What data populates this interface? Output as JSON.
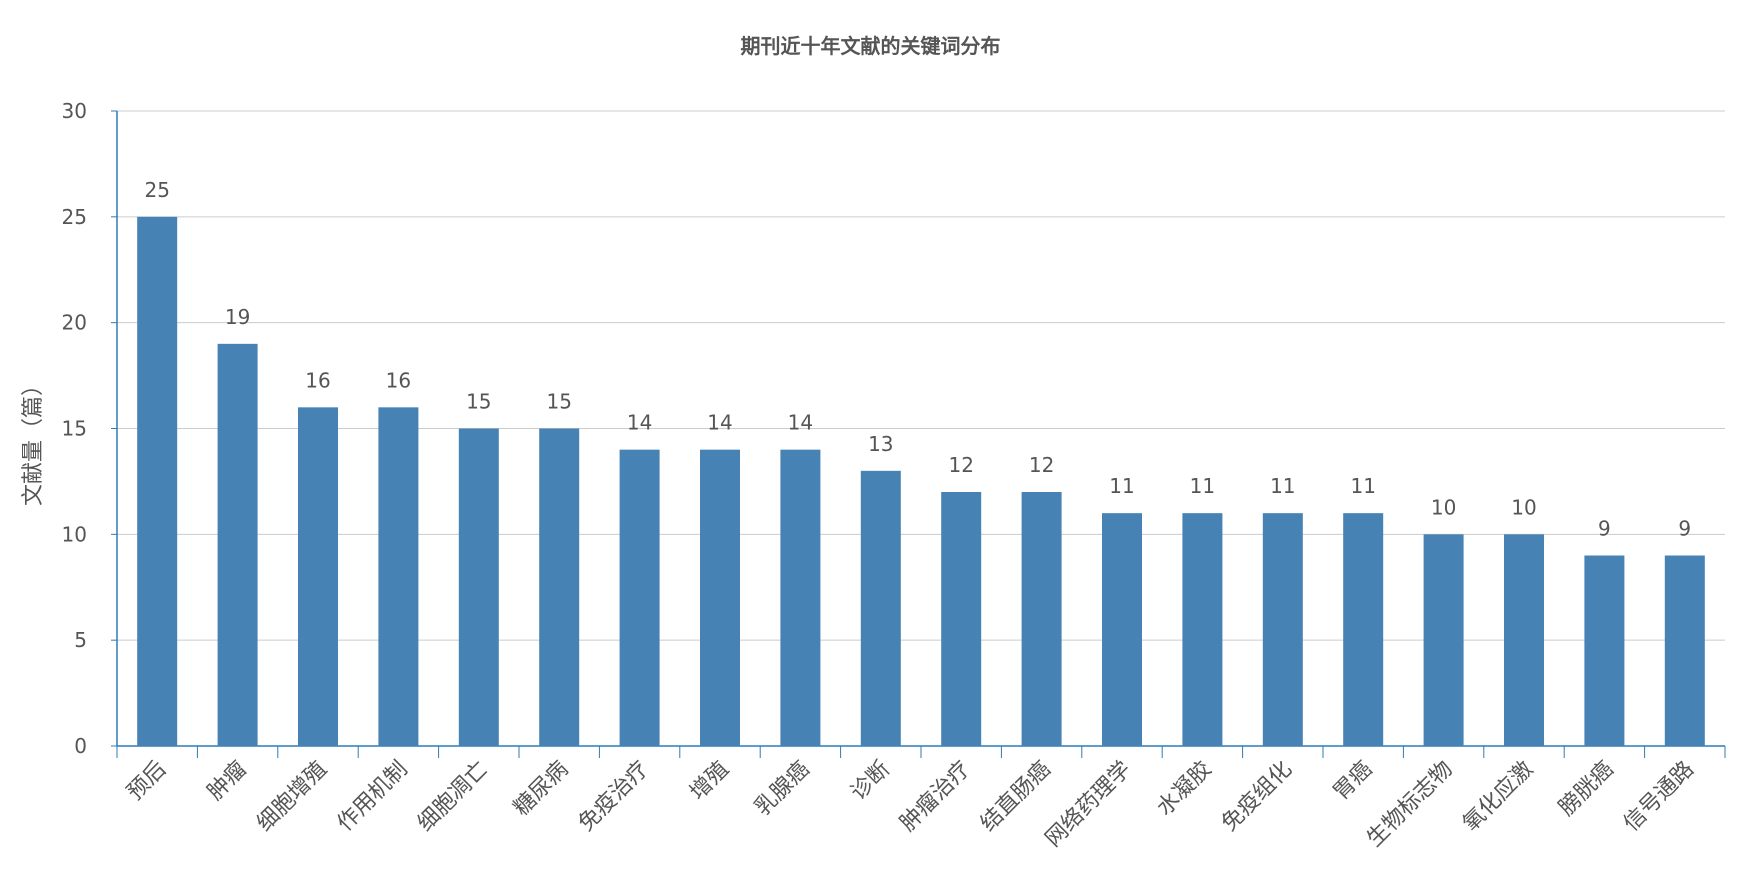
{
  "chart_data": {
    "type": "bar",
    "title": "期刊近十年文献的关键词分布",
    "xlabel": "",
    "ylabel": "文献量（篇）",
    "ylim": [
      0,
      30
    ],
    "yticks": [
      0,
      5,
      10,
      15,
      20,
      25,
      30
    ],
    "grid": true,
    "legend": "none",
    "categories": [
      "预后",
      "肿瘤",
      "细胞增殖",
      "作用机制",
      "细胞凋亡",
      "糖尿病",
      "免疫治疗",
      "增殖",
      "乳腺癌",
      "诊断",
      "肿瘤治疗",
      "结直肠癌",
      "网络药理学",
      "水凝胶",
      "免疫组化",
      "胃癌",
      "生物标志物",
      "氧化应激",
      "膀胱癌",
      "信号通路"
    ],
    "values": [
      25,
      19,
      16,
      16,
      15,
      15,
      14,
      14,
      14,
      13,
      12,
      12,
      11,
      11,
      11,
      11,
      10,
      10,
      9,
      9
    ],
    "colors": {
      "bar": "#4682b4",
      "axis": "#2e7bb5",
      "grid": "#cccccc",
      "text": "#555555"
    }
  }
}
